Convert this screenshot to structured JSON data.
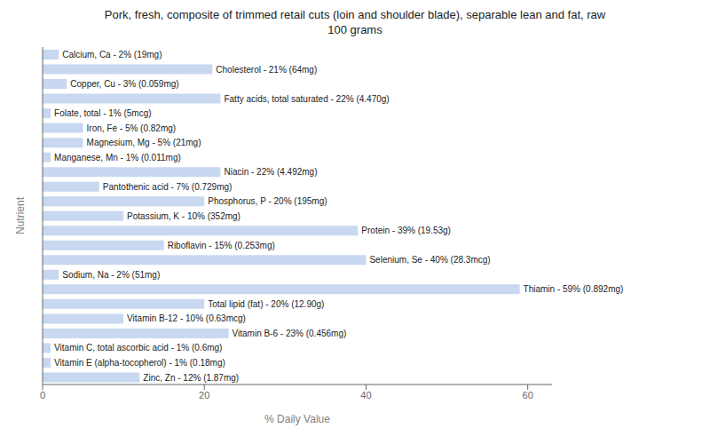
{
  "chart_data": {
    "type": "bar",
    "orientation": "horizontal",
    "title": "Pork, fresh, composite of trimmed retail cuts (loin and shoulder blade), separable lean and fat, raw\n100 grams",
    "xlabel": "% Daily Value",
    "ylabel": "Nutrient",
    "categories": [
      "Calcium, Ca - 2% (19mg)",
      "Cholesterol - 21% (64mg)",
      "Copper, Cu - 3% (0.059mg)",
      "Fatty acids, total saturated - 22% (4.470g)",
      "Folate, total - 1% (5mcg)",
      "Iron, Fe - 5% (0.82mg)",
      "Magnesium, Mg - 5% (21mg)",
      "Manganese, Mn - 1% (0.011mg)",
      "Niacin - 22% (4.492mg)",
      "Pantothenic acid - 7% (0.729mg)",
      "Phosphorus, P - 20% (195mg)",
      "Potassium, K - 10% (352mg)",
      "Protein - 39% (19.53g)",
      "Riboflavin - 15% (0.253mg)",
      "Selenium, Se - 40% (28.3mcg)",
      "Sodium, Na - 2% (51mg)",
      "Thiamin - 59% (0.892mg)",
      "Total lipid (fat) - 20% (12.90g)",
      "Vitamin B-12 - 10% (0.63mcg)",
      "Vitamin B-6 - 23% (0.456mg)",
      "Vitamin C, total ascorbic acid - 1% (0.6mg)",
      "Vitamin E (alpha-tocopherol) - 1% (0.18mg)",
      "Zinc, Zn - 12% (1.87mg)"
    ],
    "values": [
      2,
      21,
      3,
      22,
      1,
      5,
      5,
      1,
      22,
      7,
      20,
      10,
      39,
      15,
      40,
      2,
      59,
      20,
      10,
      23,
      1,
      1,
      12
    ],
    "color": "#c8d8f0",
    "xlim": [
      0,
      63
    ],
    "xticks": [
      0,
      20,
      40,
      60
    ],
    "grid": false,
    "tick_labels": "x"
  }
}
